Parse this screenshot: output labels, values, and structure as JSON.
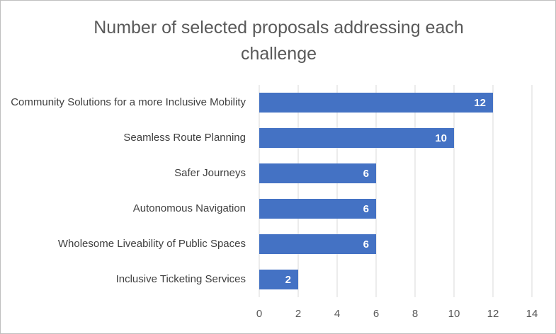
{
  "chart_data": {
    "type": "bar",
    "orientation": "horizontal",
    "title": "Number of selected proposals addressing each challenge",
    "categories": [
      "Community Solutions for a more Inclusive Mobility",
      "Seamless Route Planning",
      "Safer Journeys",
      "Autonomous Navigation",
      "Wholesome Liveability of Public Spaces",
      "Inclusive Ticketing Services"
    ],
    "values": [
      12,
      10,
      6,
      6,
      6,
      2
    ],
    "color": "#4472c4",
    "xlim": [
      0,
      14
    ],
    "xticks": [
      0,
      2,
      4,
      6,
      8,
      10,
      12,
      14
    ],
    "grid": true,
    "data_labels": true
  }
}
